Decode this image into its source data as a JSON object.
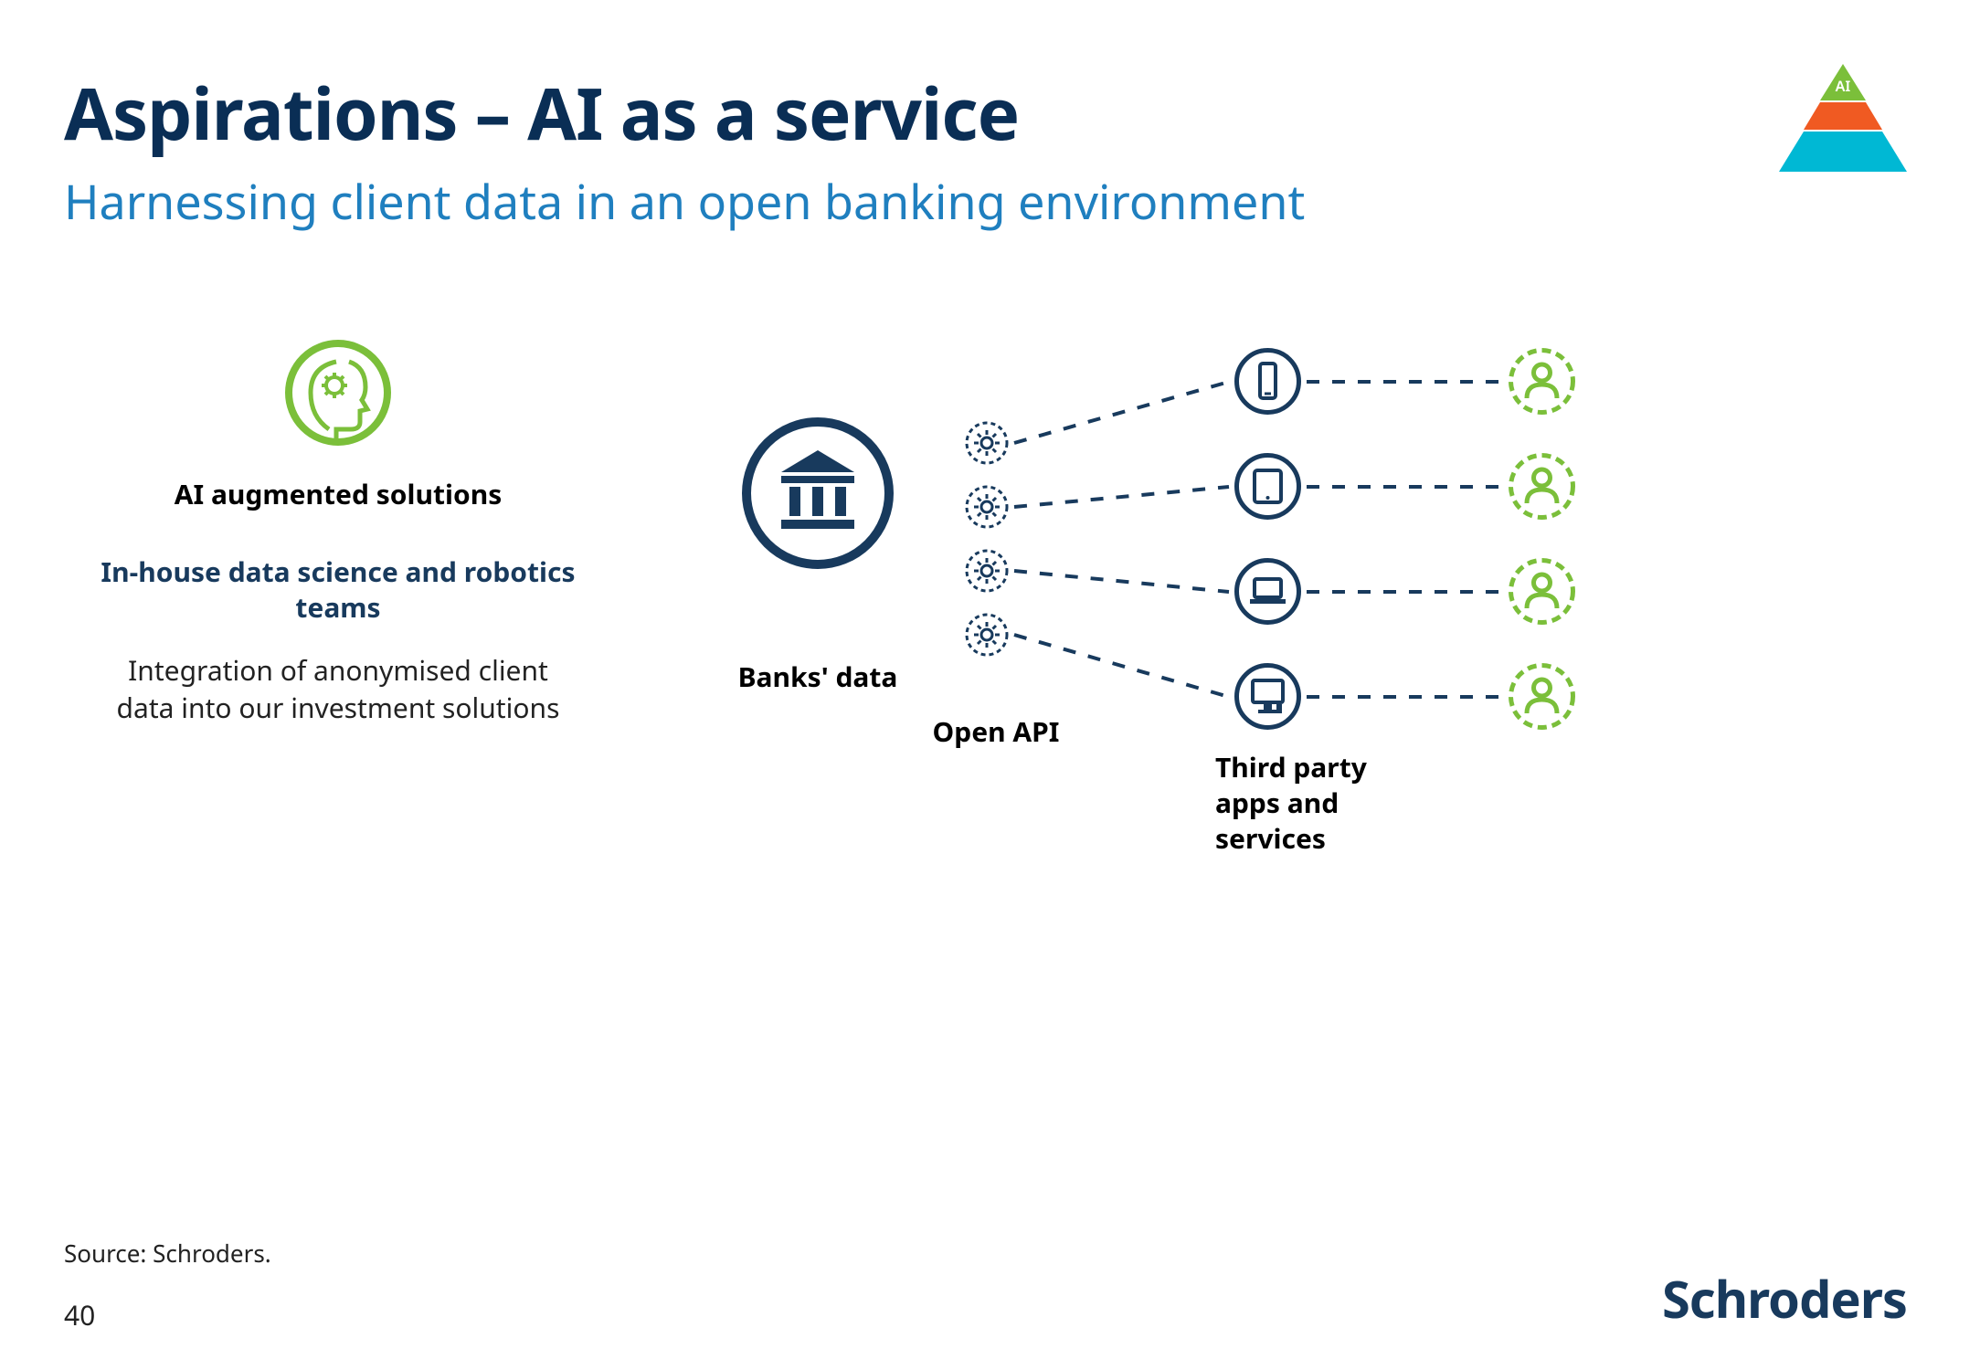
{
  "colors": {
    "title": "#0a2e55",
    "subtitle": "#1f7fbf",
    "navy": "#183a5d",
    "green": "#7bbf3a",
    "text": "#222222",
    "brand": "#183a5d",
    "pyr_top": "#7bbf3a",
    "pyr_mid": "#f05a22",
    "pyr_bot": "#00b8d4"
  },
  "title": "Aspirations – AI as a service",
  "subtitle": "Harnessing client data in an open banking environment",
  "pyramid_label": "AI",
  "left": {
    "heading1": "AI augmented solutions",
    "heading2": "In-house data science and robotics teams",
    "body": "Integration of anonymised client data into our investment solutions"
  },
  "banks_label": "Banks' data",
  "open_api_label": "Open API",
  "third_party_label": "Third party apps and services",
  "source": "Source: Schroders.",
  "page_num": "40",
  "brand": "Schroders",
  "icon_sizes": {
    "head_circle": 120,
    "bank_circle": 170,
    "gear_circle": 50,
    "device_circle": 75,
    "user_circle": 75
  },
  "stroke_widths": {
    "thick": 8,
    "med": 5,
    "thin": 4,
    "dash": 4
  }
}
